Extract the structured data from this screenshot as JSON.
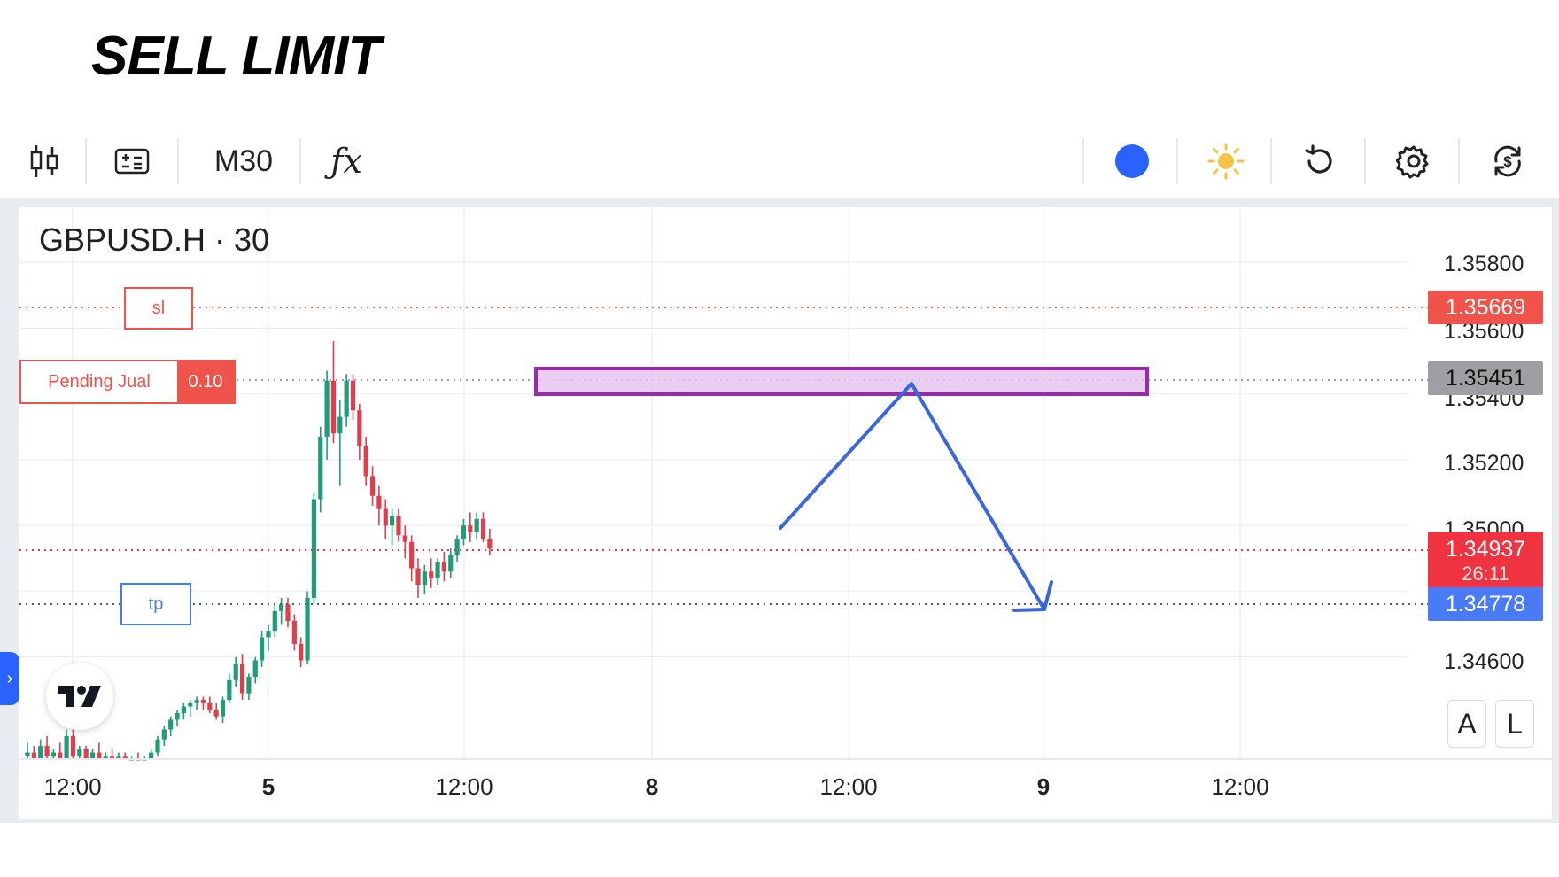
{
  "heading": "SELL LIMIT",
  "toolbar": {
    "candles_icon": "candlestick-chart-icon",
    "indicator_icon": "indicators-icon",
    "timeframe": "M30",
    "fx_label": "ƒx",
    "dot_color": "#2962ff",
    "sun_icon": "sun-icon",
    "reset_icon": "refresh-icon",
    "settings_icon": "gear-icon",
    "trade_icon": "currency-exchange-icon"
  },
  "chart": {
    "symbol": "GBPUSD.H · 30",
    "price_axis": [
      "1.35800",
      "1.35600",
      "1.35400",
      "1.35200",
      "1.35000",
      "1.34600"
    ],
    "time_axis": [
      "12:00",
      "5",
      "12:00",
      "8",
      "12:00",
      "9",
      "12:00"
    ],
    "sl_label": "sl",
    "tp_label": "tp",
    "pending_label": "Pending Jual",
    "pending_volume": "0.10",
    "sl_price": "1.35669",
    "pending_price": "1.35451",
    "current_price": "1.34937",
    "countdown": "26:11",
    "tp_price": "1.34778",
    "btn_auto": "A",
    "btn_log": "L",
    "colors": {
      "sl": "#f0534a",
      "pending": "#9e9ea3",
      "current": "#ef3340",
      "tp": "#4a7bf7",
      "up": "#1f9c78",
      "down": "#e03e4a",
      "zone": "#9c27b0",
      "arrow": "#3a66e0"
    }
  }
}
